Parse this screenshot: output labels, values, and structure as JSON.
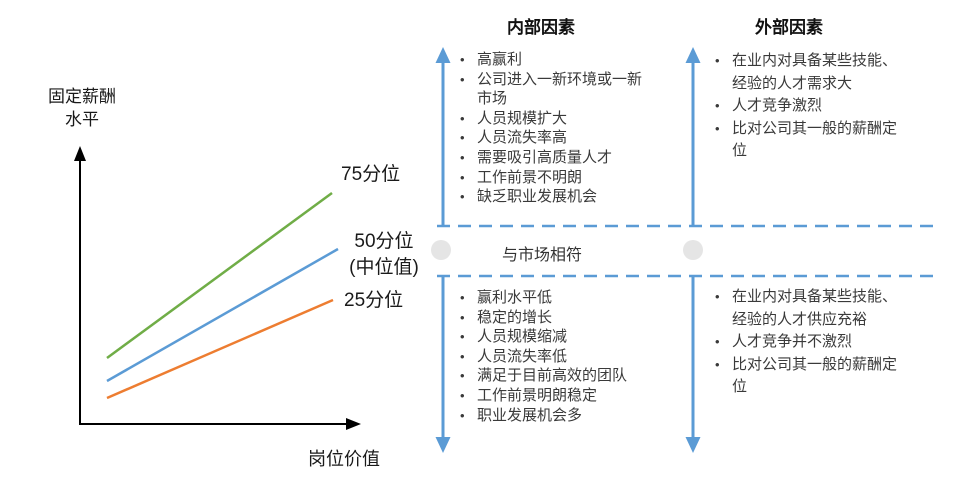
{
  "colors": {
    "axis": "#000000",
    "line_75": "#70AD47",
    "line_50": "#5B9BD5",
    "line_25": "#ED7D31",
    "arrow_blue": "#5B9BD5",
    "circle_gray": "#E5E5E5"
  },
  "chart": {
    "y_axis_label": "固定薪酬\n水平",
    "x_axis_label": "岗位价值",
    "line_labels": {
      "p75": "75分位",
      "p50": "50分位\n(中位值)",
      "p25": "25分位"
    }
  },
  "band": {
    "label": "与市场相符"
  },
  "columns": {
    "internal": {
      "header": "内部因素",
      "above": [
        "高赢利",
        "公司进入一新环境或一新市场",
        "人员规模扩大",
        "人员流失率高",
        "需要吸引高质量人才",
        "工作前景不明朗",
        "缺乏职业发展机会"
      ],
      "below": [
        "赢利水平低",
        "稳定的增长",
        "人员规模缩减",
        "人员流失率低",
        "满足于目前高效的团队",
        "工作前景明朗稳定",
        "职业发展机会多"
      ]
    },
    "external": {
      "header": "外部因素",
      "above": [
        "在业内对具备某些技能、经验的人才需求大",
        "人才竞争激烈",
        "比对公司其一般的薪酬定位"
      ],
      "below": [
        "在业内对具备某些技能、经验的人才供应充裕",
        "人才竞争并不激烈",
        "比对公司其一般的薪酬定位"
      ]
    }
  }
}
